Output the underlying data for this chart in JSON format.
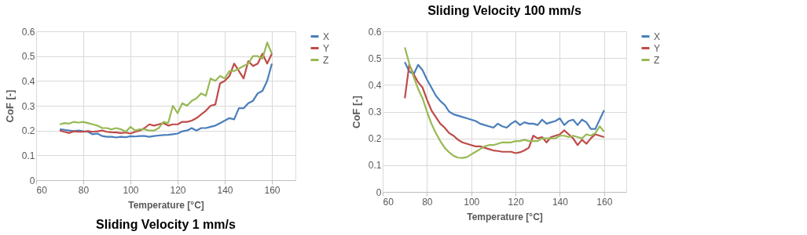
{
  "chart_data": [
    {
      "type": "line",
      "title": "Sliding Velocity 1 mm/s",
      "xlabel": "Temperature [°C]",
      "ylabel": "CoF [-]",
      "x": [
        70,
        72,
        74,
        76,
        78,
        80,
        82,
        84,
        86,
        88,
        90,
        92,
        94,
        96,
        98,
        100,
        102,
        104,
        106,
        108,
        110,
        112,
        114,
        116,
        118,
        120,
        122,
        124,
        126,
        128,
        130,
        132,
        134,
        136,
        138,
        140,
        142,
        144,
        146,
        148,
        150,
        152,
        154,
        156,
        158,
        160
      ],
      "series": [
        {
          "name": "X",
          "color": "#4a7ebb",
          "values": [
            0.205,
            0.203,
            0.2,
            0.198,
            0.2,
            0.197,
            0.195,
            0.185,
            0.188,
            0.178,
            0.175,
            0.175,
            0.172,
            0.175,
            0.173,
            0.177,
            0.176,
            0.178,
            0.178,
            0.175,
            0.178,
            0.18,
            0.182,
            0.183,
            0.185,
            0.188,
            0.197,
            0.2,
            0.21,
            0.2,
            0.21,
            0.21,
            0.215,
            0.22,
            0.23,
            0.24,
            0.25,
            0.245,
            0.29,
            0.29,
            0.31,
            0.32,
            0.35,
            0.36,
            0.4,
            0.47
          ]
        },
        {
          "name": "Y",
          "color": "#be4b48",
          "values": [
            0.2,
            0.195,
            0.19,
            0.197,
            0.195,
            0.195,
            0.198,
            0.195,
            0.197,
            0.2,
            0.195,
            0.193,
            0.192,
            0.19,
            0.192,
            0.188,
            0.195,
            0.2,
            0.21,
            0.225,
            0.22,
            0.225,
            0.23,
            0.22,
            0.225,
            0.225,
            0.235,
            0.235,
            0.24,
            0.25,
            0.265,
            0.28,
            0.3,
            0.305,
            0.39,
            0.4,
            0.42,
            0.47,
            0.44,
            0.41,
            0.48,
            0.46,
            0.47,
            0.51,
            0.47,
            0.51
          ]
        },
        {
          "name": "Z",
          "color": "#98b954",
          "values": [
            0.225,
            0.23,
            0.228,
            0.235,
            0.232,
            0.235,
            0.23,
            0.225,
            0.22,
            0.21,
            0.21,
            0.205,
            0.21,
            0.205,
            0.195,
            0.215,
            0.2,
            0.205,
            0.205,
            0.2,
            0.2,
            0.21,
            0.235,
            0.23,
            0.3,
            0.27,
            0.31,
            0.3,
            0.32,
            0.33,
            0.35,
            0.34,
            0.41,
            0.4,
            0.42,
            0.41,
            0.44,
            0.44,
            0.45,
            0.46,
            0.47,
            0.5,
            0.5,
            0.49,
            0.555,
            0.51
          ]
        }
      ],
      "xlim": [
        60,
        170
      ],
      "xticks": [
        60,
        80,
        100,
        120,
        140,
        160
      ],
      "ylim": [
        0,
        0.6
      ],
      "yticks": [
        0,
        0.1,
        0.2,
        0.3,
        0.4,
        0.5,
        0.6
      ],
      "grid": true,
      "legend": "right",
      "marker": "none",
      "line_style": "solid"
    },
    {
      "type": "line",
      "title": "Sliding Velocity 100 mm/s",
      "xlabel": "Temperature [°C]",
      "ylabel": "CoF [-]",
      "x": [
        70,
        72,
        74,
        76,
        78,
        80,
        82,
        84,
        86,
        88,
        90,
        92,
        94,
        96,
        98,
        100,
        102,
        104,
        106,
        108,
        110,
        112,
        114,
        116,
        118,
        120,
        122,
        124,
        126,
        128,
        130,
        132,
        134,
        136,
        138,
        140,
        142,
        144,
        146,
        148,
        150,
        152,
        154,
        156,
        158,
        160
      ],
      "series": [
        {
          "name": "X",
          "color": "#4a7ebb",
          "values": [
            0.485,
            0.45,
            0.44,
            0.475,
            0.455,
            0.42,
            0.39,
            0.36,
            0.34,
            0.325,
            0.3,
            0.29,
            0.285,
            0.28,
            0.275,
            0.27,
            0.265,
            0.255,
            0.25,
            0.245,
            0.24,
            0.255,
            0.245,
            0.24,
            0.255,
            0.265,
            0.25,
            0.26,
            0.255,
            0.255,
            0.25,
            0.27,
            0.255,
            0.26,
            0.265,
            0.275,
            0.25,
            0.265,
            0.27,
            0.25,
            0.27,
            0.26,
            0.235,
            0.235,
            0.27,
            0.305
          ]
        },
        {
          "name": "Y",
          "color": "#be4b48",
          "values": [
            0.35,
            0.475,
            0.44,
            0.41,
            0.39,
            0.345,
            0.305,
            0.28,
            0.255,
            0.24,
            0.22,
            0.21,
            0.195,
            0.185,
            0.18,
            0.175,
            0.17,
            0.17,
            0.165,
            0.16,
            0.155,
            0.153,
            0.15,
            0.15,
            0.15,
            0.145,
            0.148,
            0.155,
            0.165,
            0.21,
            0.2,
            0.205,
            0.185,
            0.205,
            0.21,
            0.215,
            0.23,
            0.215,
            0.2,
            0.175,
            0.195,
            0.18,
            0.2,
            0.215,
            0.21,
            0.205
          ]
        },
        {
          "name": "Z",
          "color": "#98b954",
          "values": [
            0.54,
            0.48,
            0.43,
            0.385,
            0.35,
            0.3,
            0.255,
            0.22,
            0.19,
            0.165,
            0.148,
            0.135,
            0.128,
            0.127,
            0.13,
            0.14,
            0.15,
            0.16,
            0.17,
            0.175,
            0.175,
            0.18,
            0.185,
            0.185,
            0.185,
            0.19,
            0.19,
            0.195,
            0.19,
            0.19,
            0.19,
            0.2,
            0.2,
            0.2,
            0.2,
            0.21,
            0.21,
            0.205,
            0.21,
            0.205,
            0.2,
            0.215,
            0.21,
            0.22,
            0.245,
            0.225
          ]
        }
      ],
      "xlim": [
        60,
        170
      ],
      "xticks": [
        60,
        80,
        100,
        120,
        140,
        160
      ],
      "ylim": [
        0,
        0.6
      ],
      "yticks": [
        0,
        0.1,
        0.2,
        0.3,
        0.4,
        0.5,
        0.6
      ],
      "grid": true,
      "legend": "right",
      "marker": "none",
      "line_style": "solid"
    }
  ]
}
